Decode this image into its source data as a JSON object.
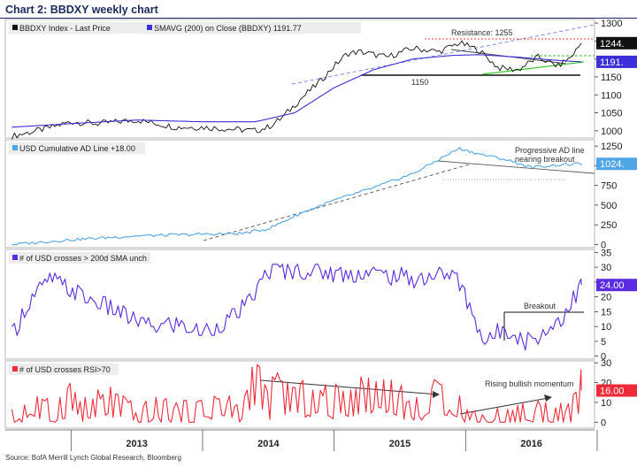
{
  "title": "Chart 2: BBDXY weekly chart",
  "source": "Source: BofA Merrill Lynch Global Research, Bloomberg",
  "x_axis_labels": [
    "2013",
    "2014",
    "2015",
    "2016"
  ],
  "chart_data": [
    {
      "type": "line",
      "panel": "BBDXY",
      "x_range": [
        "2012-07",
        "2016-11"
      ],
      "ylim": [
        980,
        1310
      ],
      "yticks": [
        "1300",
        "1250",
        "1200",
        "1150",
        "1100",
        "1050",
        "1000"
      ],
      "series": [
        {
          "name": "BBDXY Index - Last Price",
          "legend_label": "BBDXY Index - Last Price",
          "color": "#111111",
          "last_value_label": "1244.",
          "x": [
            2012.55,
            2012.8,
            2013.0,
            2013.2,
            2013.5,
            2013.8,
            2014.0,
            2014.2,
            2014.4,
            2014.5,
            2014.6,
            2014.75,
            2014.9,
            2015.0,
            2015.1,
            2015.2,
            2015.4,
            2015.6,
            2015.8,
            2015.95,
            2016.1,
            2016.25,
            2016.4,
            2016.55,
            2016.7,
            2016.8,
            2016.88
          ],
          "values": [
            985,
            1005,
            1025,
            1020,
            1030,
            1010,
            1010,
            1005,
            1000,
            1010,
            1035,
            1090,
            1140,
            1180,
            1215,
            1220,
            1205,
            1230,
            1220,
            1245,
            1225,
            1175,
            1170,
            1205,
            1180,
            1205,
            1244
          ]
        },
        {
          "name": "SMAVG (200) on Close (BBDXY) 1191.77",
          "legend_label": "SMAVG (200) on Close (BBDXY) 1191.77",
          "color": "#3a2fd8",
          "last_value_label": "1191.",
          "x": [
            2012.55,
            2013.0,
            2013.5,
            2014.0,
            2014.4,
            2014.7,
            2015.0,
            2015.3,
            2015.6,
            2015.9,
            2016.1,
            2016.4,
            2016.7,
            2016.88
          ],
          "values": [
            1010,
            1020,
            1030,
            1025,
            1025,
            1050,
            1120,
            1170,
            1200,
            1210,
            1212,
            1205,
            1196,
            1192
          ]
        }
      ],
      "annotations": [
        "Resistance: 1255",
        "1150"
      ],
      "reference_levels": [
        {
          "name": "resistance",
          "value": 1255
        },
        {
          "name": "support",
          "value": 1150
        }
      ]
    },
    {
      "type": "line",
      "panel": "AD Line",
      "x_range": [
        "2012-07",
        "2016-11"
      ],
      "ylim": [
        -40,
        1330
      ],
      "yticks": [
        "1250",
        "1000",
        "750",
        "500",
        "250",
        "0"
      ],
      "series": [
        {
          "name": "USD Cumulative AD Line +18.00",
          "legend_label": "USD Cumulative AD Line +18.00",
          "color": "#4fa6e6",
          "last_value_label": "1024.",
          "x": [
            2012.55,
            2013.0,
            2013.5,
            2014.0,
            2014.3,
            2014.5,
            2014.75,
            2015.0,
            2015.3,
            2015.6,
            2015.95,
            2016.1,
            2016.3,
            2016.5,
            2016.7,
            2016.88
          ],
          "values": [
            0,
            60,
            110,
            130,
            140,
            200,
            400,
            560,
            720,
            900,
            1220,
            1150,
            1080,
            980,
            1010,
            1024
          ]
        }
      ],
      "annotations": [
        "Progressive AD line",
        "nearing breakout"
      ]
    },
    {
      "type": "line",
      "panel": "SMA crosses",
      "x_range": [
        "2012-07",
        "2016-11"
      ],
      "ylim": [
        -1,
        36
      ],
      "yticks": [
        "35",
        "30",
        "25",
        "20",
        "15",
        "10",
        "5",
        "0"
      ],
      "series": [
        {
          "name": "# of USD crosses > 200d SMA unch",
          "legend_label": "# of USD crosses > 200d SMA unch",
          "color": "#5a2be0",
          "last_value_label": "24.00",
          "x": [
            2012.55,
            2012.7,
            2012.85,
            2013.0,
            2013.2,
            2013.4,
            2013.6,
            2013.8,
            2014.0,
            2014.2,
            2014.35,
            2014.5,
            2014.7,
            2015.0,
            2015.3,
            2015.6,
            2015.9,
            2016.0,
            2016.15,
            2016.3,
            2016.45,
            2016.6,
            2016.75,
            2016.88
          ],
          "values": [
            7,
            20,
            26,
            22,
            18,
            14,
            10,
            11,
            8,
            12,
            18,
            29,
            29,
            28,
            28,
            26,
            28,
            20,
            4,
            10,
            5,
            8,
            14,
            24
          ]
        }
      ],
      "annotations": [
        "Breakout"
      ],
      "reference_levels": [
        {
          "name": "breakout",
          "value": 15
        }
      ]
    },
    {
      "type": "line",
      "panel": "RSI crosses",
      "x_range": [
        "2012-07",
        "2016-11"
      ],
      "ylim": [
        -3,
        31
      ],
      "yticks": [
        "30",
        "20",
        "10",
        "0"
      ],
      "series": [
        {
          "name": "# of USD crosses RSI>70",
          "legend_label": "# of USD crosses RSI>70",
          "color": "#ef2b3a",
          "last_value_label": "16.00",
          "x": [
            2012.55,
            2012.7,
            2012.85,
            2013.0,
            2013.1,
            2013.3,
            2013.5,
            2013.7,
            2013.9,
            2014.1,
            2014.3,
            2014.4,
            2014.5,
            2014.55,
            2014.7,
            2014.9,
            2015.0,
            2015.2,
            2015.4,
            2015.6,
            2015.75,
            2015.9,
            2016.0,
            2016.2,
            2016.4,
            2016.6,
            2016.8,
            2016.88
          ],
          "values": [
            0,
            8,
            2,
            12,
            4,
            9,
            1,
            5,
            2,
            8,
            3,
            22,
            6,
            14,
            10,
            9,
            8,
            12,
            14,
            4,
            10,
            12,
            2,
            0,
            2,
            4,
            1,
            16
          ]
        }
      ],
      "annotations": [
        "Rising bullish momentum"
      ]
    }
  ]
}
